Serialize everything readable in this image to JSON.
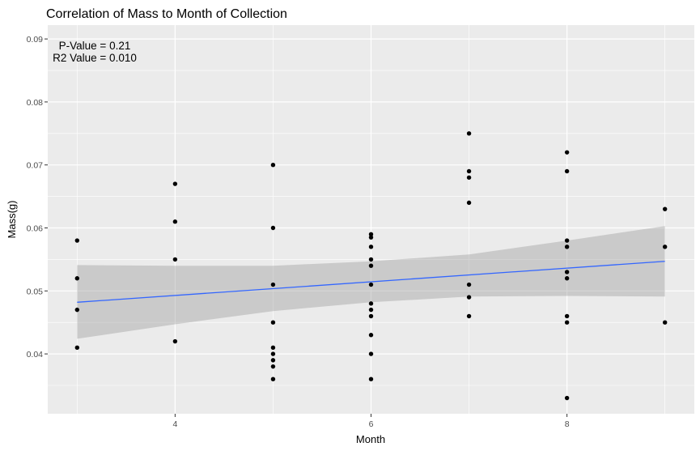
{
  "chart_data": {
    "type": "scatter",
    "title": "Correlation of Mass to Month of Collection",
    "xlabel": "Month",
    "ylabel": "Mass(g)",
    "xlim": [
      2.7,
      9.3
    ],
    "ylim": [
      0.0305,
      0.0922
    ],
    "x_ticks": [
      4,
      6,
      8
    ],
    "y_ticks": [
      0.04,
      0.05,
      0.06,
      0.07,
      0.08,
      0.09
    ],
    "x_tick_labels": [
      "4",
      "6",
      "8"
    ],
    "y_tick_labels": [
      "0.04",
      "0.05",
      "0.06",
      "0.07",
      "0.08",
      "0.09"
    ],
    "grid": true,
    "annotations": [
      "P-Value = 0.21",
      "R2 Value = 0.010"
    ],
    "points": [
      {
        "x": 3,
        "y": 0.058
      },
      {
        "x": 3,
        "y": 0.052
      },
      {
        "x": 3,
        "y": 0.047
      },
      {
        "x": 3,
        "y": 0.041
      },
      {
        "x": 4,
        "y": 0.067
      },
      {
        "x": 4,
        "y": 0.061
      },
      {
        "x": 4,
        "y": 0.055
      },
      {
        "x": 4,
        "y": 0.042
      },
      {
        "x": 5,
        "y": 0.07
      },
      {
        "x": 5,
        "y": 0.06
      },
      {
        "x": 5,
        "y": 0.051
      },
      {
        "x": 5,
        "y": 0.045
      },
      {
        "x": 5,
        "y": 0.041
      },
      {
        "x": 5,
        "y": 0.04
      },
      {
        "x": 5,
        "y": 0.039
      },
      {
        "x": 5,
        "y": 0.038
      },
      {
        "x": 5,
        "y": 0.036
      },
      {
        "x": 6,
        "y": 0.059
      },
      {
        "x": 6,
        "y": 0.0585
      },
      {
        "x": 6,
        "y": 0.057
      },
      {
        "x": 6,
        "y": 0.055
      },
      {
        "x": 6,
        "y": 0.054
      },
      {
        "x": 6,
        "y": 0.051
      },
      {
        "x": 6,
        "y": 0.048
      },
      {
        "x": 6,
        "y": 0.047
      },
      {
        "x": 6,
        "y": 0.046
      },
      {
        "x": 6,
        "y": 0.043
      },
      {
        "x": 6,
        "y": 0.04
      },
      {
        "x": 6,
        "y": 0.036
      },
      {
        "x": 7,
        "y": 0.075
      },
      {
        "x": 7,
        "y": 0.069
      },
      {
        "x": 7,
        "y": 0.068
      },
      {
        "x": 7,
        "y": 0.064
      },
      {
        "x": 7,
        "y": 0.051
      },
      {
        "x": 7,
        "y": 0.049
      },
      {
        "x": 7,
        "y": 0.046
      },
      {
        "x": 8,
        "y": 0.072
      },
      {
        "x": 8,
        "y": 0.069
      },
      {
        "x": 8,
        "y": 0.058
      },
      {
        "x": 8,
        "y": 0.057
      },
      {
        "x": 8,
        "y": 0.053
      },
      {
        "x": 8,
        "y": 0.052
      },
      {
        "x": 8,
        "y": 0.046
      },
      {
        "x": 8,
        "y": 0.045
      },
      {
        "x": 8,
        "y": 0.033
      },
      {
        "x": 9,
        "y": 0.063
      },
      {
        "x": 9,
        "y": 0.057
      },
      {
        "x": 9,
        "y": 0.045
      }
    ],
    "regression_line": {
      "x": [
        3,
        9
      ],
      "y": [
        0.0482,
        0.0547
      ]
    },
    "confidence_band": {
      "x": [
        3,
        4,
        5,
        6,
        7,
        8,
        9
      ],
      "lower": [
        0.0424,
        0.0447,
        0.0468,
        0.0482,
        0.0491,
        0.0492,
        0.0491
      ],
      "upper": [
        0.0541,
        0.054,
        0.054,
        0.0547,
        0.0558,
        0.058,
        0.0603
      ]
    },
    "colors": {
      "panel": "#ebebeb",
      "grid_major": "#ffffff",
      "point": "#000000",
      "line": "#3366ff",
      "band": "#999999",
      "tick": "#333333"
    }
  }
}
